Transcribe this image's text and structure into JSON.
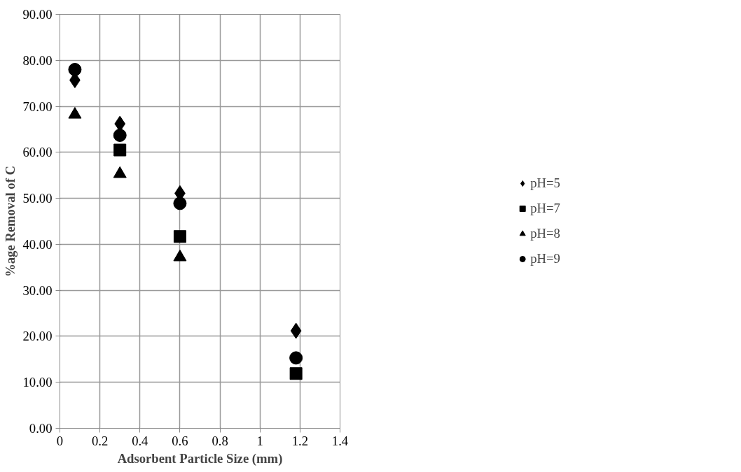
{
  "chart_data": {
    "type": "scatter",
    "xlabel": "Adsorbent Particle Size (mm)",
    "ylabel": "%age Removal of C",
    "x": [
      0.075,
      0.3,
      0.6,
      1.18
    ],
    "xlim": [
      0,
      1.4
    ],
    "xticks": [
      0,
      0.2,
      0.4,
      0.6,
      0.8,
      1,
      1.2,
      1.4
    ],
    "ylim": [
      0,
      90
    ],
    "yticks": [
      {
        "value": 0,
        "label": "0.00"
      },
      {
        "value": 10,
        "label": "10.00"
      },
      {
        "value": 20,
        "label": "20.00"
      },
      {
        "value": 30,
        "label": "30.00"
      },
      {
        "value": 40,
        "label": "40.00"
      },
      {
        "value": 50,
        "label": "50.00"
      },
      {
        "value": 60,
        "label": "60.00"
      },
      {
        "value": 70,
        "label": "70.00"
      },
      {
        "value": 80,
        "label": "80.00"
      },
      {
        "value": 90,
        "label": "90.00"
      }
    ],
    "grid": true,
    "legend": "right",
    "series": [
      {
        "name": "pH=5",
        "color": "#000000",
        "marker": "diamond",
        "values": [
          75.7,
          66.2,
          51.1,
          21.2
        ]
      },
      {
        "name": "pH=7",
        "color": "#000000",
        "marker": "square",
        "values": [
          null,
          60.5,
          41.7,
          11.9
        ]
      },
      {
        "name": "pH=8",
        "color": "#000000",
        "marker": "triangle",
        "values": [
          68.2,
          55.3,
          37.2,
          null
        ]
      },
      {
        "name": "pH=9",
        "color": "#000000",
        "marker": "circle",
        "values": [
          78.0,
          63.7,
          48.9,
          15.3
        ]
      }
    ]
  }
}
